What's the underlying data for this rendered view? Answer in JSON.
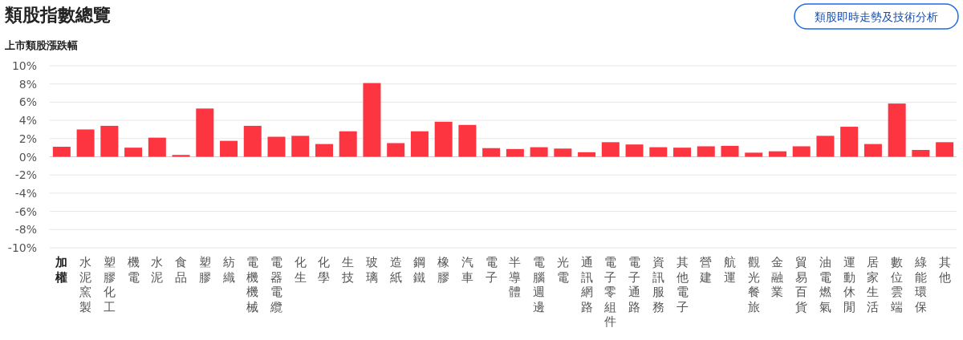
{
  "chart_data": {
    "type": "bar",
    "title": "類股指數總覽",
    "subtitle": "上市類股漲跌幅",
    "annotations": [
      "類股即時走勢及技術分析"
    ],
    "categories": [
      "加權",
      "水泥窯製",
      "塑膠化工",
      "機電",
      "水泥",
      "食品",
      "塑膠",
      "紡織",
      "電機機械",
      "電器電纜",
      "化生",
      "化學",
      "生技",
      "玻璃",
      "造紙",
      "鋼鐵",
      "橡膠",
      "汽車",
      "電子",
      "半導體",
      "電腦週邊",
      "光電",
      "通訊網路",
      "電子零組件",
      "電子通路",
      "資訊服務",
      "其他電子",
      "營建",
      "航運",
      "觀光餐旅",
      "金融業",
      "貿易百貨",
      "油電燃氣",
      "運動休閒",
      "居家生活",
      "數位雲端",
      "綠能環保",
      "其他"
    ],
    "values": [
      1.1,
      3.0,
      3.4,
      1.0,
      2.1,
      0.2,
      5.3,
      1.75,
      3.4,
      2.2,
      2.3,
      1.4,
      2.8,
      8.1,
      1.5,
      2.8,
      3.85,
      3.5,
      0.95,
      0.85,
      1.05,
      0.9,
      0.5,
      1.6,
      1.35,
      1.05,
      1.0,
      1.15,
      1.2,
      0.45,
      0.6,
      1.15,
      2.3,
      3.3,
      1.4,
      5.85,
      0.75,
      1.6
    ],
    "color": "#fc3541",
    "ylim": [
      -10,
      10
    ],
    "yticks": [
      {
        "value": -10,
        "label": "-10%"
      },
      {
        "value": -8,
        "label": "-8%"
      },
      {
        "value": -6,
        "label": "-6%"
      },
      {
        "value": -4,
        "label": "-4%"
      },
      {
        "value": -2,
        "label": "-2%"
      },
      {
        "value": 0,
        "label": "0%"
      },
      {
        "value": 2,
        "label": "2%"
      },
      {
        "value": 4,
        "label": "4%"
      },
      {
        "value": 6,
        "label": "6%"
      },
      {
        "value": 8,
        "label": "8%"
      },
      {
        "value": 10,
        "label": "10%"
      }
    ],
    "grid": "y"
  }
}
